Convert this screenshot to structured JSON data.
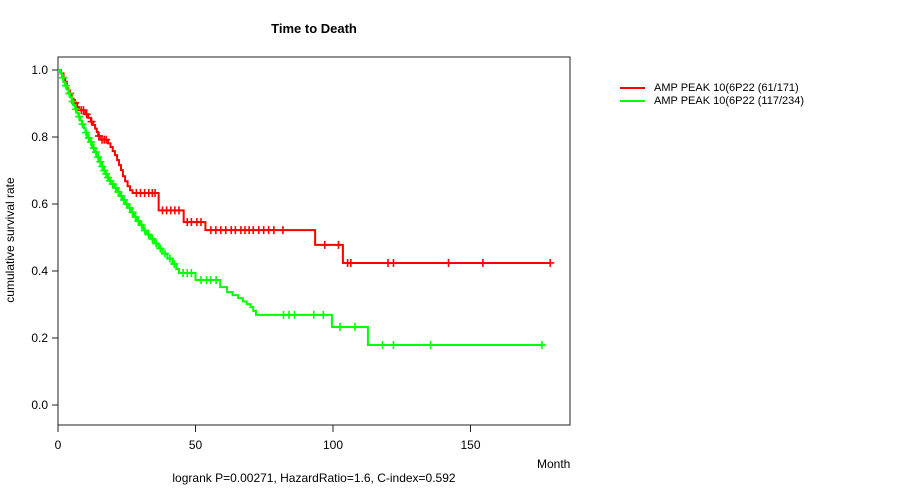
{
  "chart_data": {
    "type": "line",
    "subtype": "kaplan-meier-step",
    "title": "Time to Death",
    "xlabel": "Month",
    "ylabel": "cumulative survival rate",
    "annotation": "logrank P=0.00271, HazardRatio=1.6, C-index=0.592",
    "xlim": [
      0,
      186
    ],
    "ylim": [
      0.0,
      1.0
    ],
    "xticks": [
      "0",
      "50",
      "100",
      "150"
    ],
    "yticks": [
      "0.0",
      "0.2",
      "0.4",
      "0.6",
      "0.8",
      "1.0"
    ],
    "grid": false,
    "legend_position": "right-outside",
    "series": [
      {
        "name": "AMP PEAK 10(6P22 (61/171)",
        "color": "#ff0000",
        "start": [
          0,
          1.0
        ],
        "end_month": 179,
        "steps": [
          [
            1,
            0.99
          ],
          [
            2,
            0.977
          ],
          [
            2.6,
            0.965
          ],
          [
            3.2,
            0.945
          ],
          [
            3.8,
            0.93
          ],
          [
            5,
            0.915
          ],
          [
            5.6,
            0.902
          ],
          [
            7,
            0.889
          ],
          [
            7.7,
            0.88
          ],
          [
            10,
            0.868
          ],
          [
            11,
            0.857
          ],
          [
            12,
            0.846
          ],
          [
            12.8,
            0.836
          ],
          [
            13.5,
            0.825
          ],
          [
            14.1,
            0.815
          ],
          [
            14.6,
            0.803
          ],
          [
            15.2,
            0.792
          ],
          [
            18.2,
            0.781
          ],
          [
            19.1,
            0.77
          ],
          [
            19.9,
            0.758
          ],
          [
            20.7,
            0.746
          ],
          [
            21.5,
            0.731
          ],
          [
            22.2,
            0.716
          ],
          [
            22.9,
            0.701
          ],
          [
            23.6,
            0.683
          ],
          [
            24.4,
            0.668
          ],
          [
            25.3,
            0.653
          ],
          [
            26.2,
            0.641
          ],
          [
            27.1,
            0.633
          ],
          [
            36.6,
            0.581
          ],
          [
            45.7,
            0.546
          ],
          [
            53.6,
            0.522
          ],
          [
            93.5,
            0.478
          ],
          [
            103.6,
            0.424
          ]
        ],
        "censors": [
          4.4,
          6.2,
          8.5,
          9.3,
          10.4,
          12.2,
          14.9,
          16,
          16.8,
          17.5,
          28.5,
          30,
          31.5,
          33,
          34.3,
          35.3,
          38,
          39.5,
          41,
          42.5,
          44,
          47,
          48.5,
          50.5,
          52,
          55.6,
          57.4,
          59.2,
          61,
          63,
          64.5,
          66.5,
          68,
          69.5,
          71,
          73,
          74.8,
          76.6,
          78.5,
          81.8,
          97,
          102,
          105.3,
          106.5,
          120,
          122,
          142,
          154.5,
          179
        ]
      },
      {
        "name": "AMP PEAK 10(6P22 (117/234)",
        "color": "#00ff00",
        "start": [
          0,
          1.0
        ],
        "end_month": 176,
        "steps": [
          [
            0.8,
            0.99
          ],
          [
            1.4,
            0.977
          ],
          [
            2,
            0.964
          ],
          [
            2.6,
            0.953
          ],
          [
            3.2,
            0.942
          ],
          [
            3.8,
            0.93
          ],
          [
            4.4,
            0.919
          ],
          [
            5,
            0.906
          ],
          [
            5.6,
            0.895
          ],
          [
            6.2,
            0.883
          ],
          [
            6.8,
            0.872
          ],
          [
            7.4,
            0.861
          ],
          [
            8,
            0.849
          ],
          [
            8.7,
            0.838
          ],
          [
            9.4,
            0.826
          ],
          [
            10,
            0.813
          ],
          [
            10.7,
            0.797
          ],
          [
            11.6,
            0.785
          ],
          [
            12.4,
            0.767
          ],
          [
            13.3,
            0.755
          ],
          [
            14.2,
            0.74
          ],
          [
            15,
            0.726
          ],
          [
            15.7,
            0.712
          ],
          [
            16.4,
            0.7
          ],
          [
            17.1,
            0.69
          ],
          [
            17.8,
            0.679
          ],
          [
            18.6,
            0.669
          ],
          [
            19.4,
            0.66
          ],
          [
            20.4,
            0.648
          ],
          [
            21.5,
            0.636
          ],
          [
            22.5,
            0.624
          ],
          [
            23.5,
            0.612
          ],
          [
            24.5,
            0.6
          ],
          [
            25.6,
            0.588
          ],
          [
            26.6,
            0.575
          ],
          [
            27.7,
            0.561
          ],
          [
            28.7,
            0.549
          ],
          [
            29.8,
            0.537
          ],
          [
            31,
            0.521
          ],
          [
            32.2,
            0.509
          ],
          [
            33.6,
            0.496
          ],
          [
            35,
            0.482
          ],
          [
            36.5,
            0.467
          ],
          [
            38,
            0.452
          ],
          [
            39.8,
            0.437
          ],
          [
            41.6,
            0.421
          ],
          [
            43,
            0.406
          ],
          [
            44,
            0.394
          ],
          [
            50,
            0.373
          ],
          [
            59,
            0.352
          ],
          [
            61.5,
            0.337
          ],
          [
            63.5,
            0.328
          ],
          [
            65.5,
            0.319
          ],
          [
            67.2,
            0.309
          ],
          [
            68.6,
            0.301
          ],
          [
            70,
            0.292
          ],
          [
            71,
            0.281
          ],
          [
            72,
            0.269
          ],
          [
            99.6,
            0.233
          ],
          [
            112.7,
            0.179
          ]
        ],
        "censors": [
          1.8,
          2.9,
          4.1,
          5.3,
          6.5,
          7.7,
          8.9,
          10.2,
          11.2,
          12,
          13,
          13.8,
          14.6,
          15.4,
          16.1,
          16.8,
          17.5,
          18.2,
          19,
          19.9,
          21,
          22,
          23,
          24,
          25,
          26.1,
          27.1,
          28.2,
          29.2,
          30.4,
          31.6,
          32.9,
          34.3,
          35.7,
          37.2,
          38.9,
          40.7,
          42.3,
          45.5,
          47,
          48.5,
          52,
          54,
          55.5,
          57.5,
          82,
          84,
          86,
          93,
          96.5,
          102.5,
          108,
          118,
          122,
          135.5,
          176
        ]
      }
    ],
    "axis_color": "#222222"
  }
}
